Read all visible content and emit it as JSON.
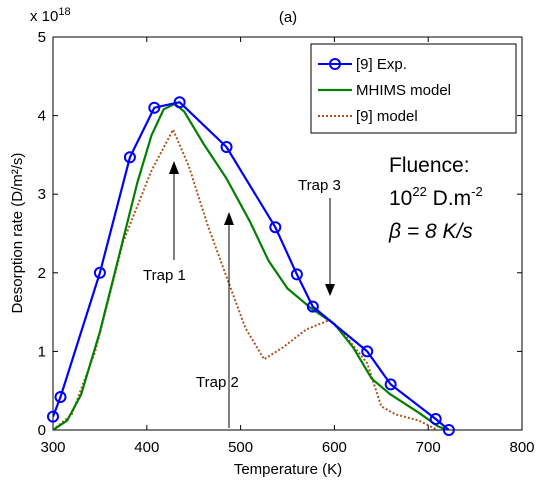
{
  "chart_data": {
    "type": "line",
    "title": "(a)",
    "xlabel": "Temperature (K)",
    "ylabel": "Desorption rate (D/m²/s)",
    "y_multiplier_base": "x 10",
    "y_multiplier_exp": "18",
    "xlim": [
      300,
      800
    ],
    "ylim": [
      0,
      5
    ],
    "x_ticks": [
      300,
      400,
      500,
      600,
      700,
      800
    ],
    "y_ticks": [
      0,
      1,
      2,
      3,
      4,
      5
    ],
    "grid": false,
    "legend_position": "top-right",
    "series": [
      {
        "name": "[9] Exp.",
        "color": "#0000ff",
        "style": "solid",
        "marker": "circle",
        "points": [
          [
            300,
            0.17
          ],
          [
            308,
            0.42
          ],
          [
            350,
            2.0
          ],
          [
            382,
            3.47
          ],
          [
            408,
            4.1
          ],
          [
            435,
            4.17
          ],
          [
            485,
            3.6
          ],
          [
            537,
            2.58
          ],
          [
            560,
            1.98
          ],
          [
            577,
            1.57
          ],
          [
            635,
            1.0
          ],
          [
            660,
            0.58
          ],
          [
            708,
            0.14
          ],
          [
            722,
            0.0
          ]
        ]
      },
      {
        "name": "MHIMS model",
        "color": "#008000",
        "style": "solid",
        "marker": "none",
        "points": [
          [
            300,
            0.0
          ],
          [
            315,
            0.12
          ],
          [
            330,
            0.45
          ],
          [
            350,
            1.25
          ],
          [
            370,
            2.2
          ],
          [
            390,
            3.15
          ],
          [
            405,
            3.75
          ],
          [
            418,
            4.08
          ],
          [
            430,
            4.15
          ],
          [
            440,
            4.05
          ],
          [
            460,
            3.65
          ],
          [
            485,
            3.2
          ],
          [
            510,
            2.65
          ],
          [
            530,
            2.15
          ],
          [
            550,
            1.8
          ],
          [
            575,
            1.55
          ],
          [
            600,
            1.35
          ],
          [
            620,
            1.05
          ],
          [
            640,
            0.65
          ],
          [
            660,
            0.45
          ],
          [
            690,
            0.22
          ],
          [
            710,
            0.05
          ],
          [
            720,
            0.0
          ]
        ]
      },
      {
        "name": "[9] model",
        "color": "#b2531f",
        "style": "dotted",
        "marker": "none",
        "points": [
          [
            300,
            0.0
          ],
          [
            320,
            0.2
          ],
          [
            345,
            1.0
          ],
          [
            375,
            2.4
          ],
          [
            405,
            3.3
          ],
          [
            428,
            3.82
          ],
          [
            445,
            3.35
          ],
          [
            465,
            2.6
          ],
          [
            485,
            1.95
          ],
          [
            505,
            1.3
          ],
          [
            525,
            0.9
          ],
          [
            545,
            1.05
          ],
          [
            570,
            1.28
          ],
          [
            595,
            1.4
          ],
          [
            615,
            1.15
          ],
          [
            635,
            0.85
          ],
          [
            650,
            0.3
          ],
          [
            665,
            0.2
          ],
          [
            690,
            0.12
          ],
          [
            710,
            0.0
          ]
        ]
      }
    ],
    "annotations": {
      "fluence_label": "Fluence:",
      "fluence_base": "10",
      "fluence_exp": "22",
      "fluence_unit": " D.m",
      "fluence_unit_exp": "-2",
      "beta_prefix": "β = ",
      "beta_value": "8 K/s",
      "trap1": "Trap 1",
      "trap2": "Trap 2",
      "trap3": "Trap 3"
    }
  }
}
